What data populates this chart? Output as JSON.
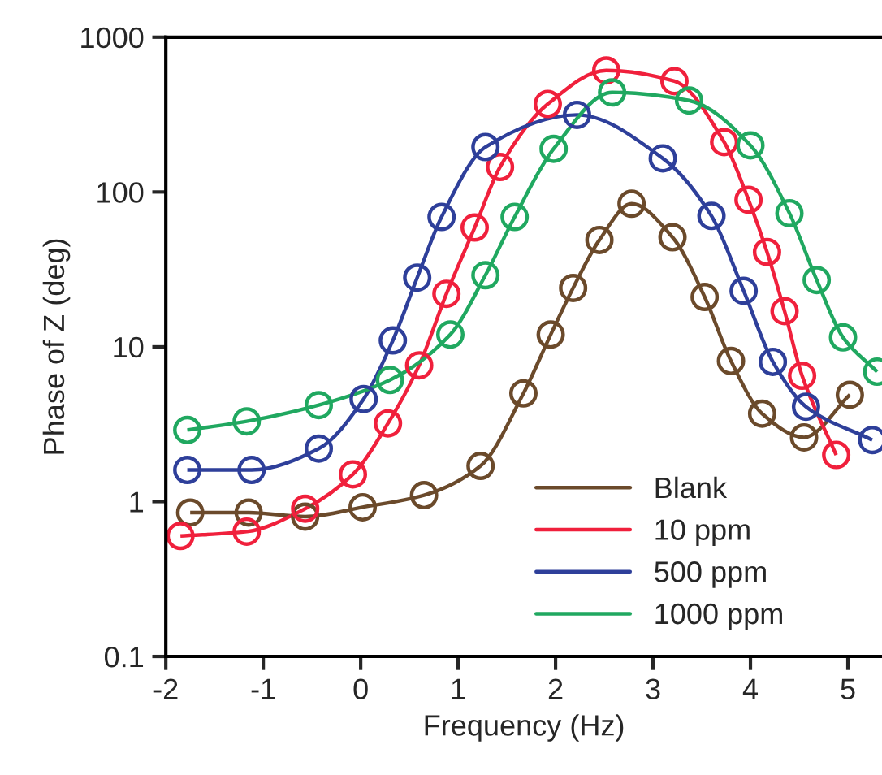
{
  "chart_data": {
    "type": "line",
    "xlabel": "Frequency (Hz)",
    "ylabel": "Phase of Z (deg)",
    "log": "y",
    "xlim": [
      -2,
      5.35
    ],
    "xticks": [
      -2,
      -1,
      0,
      1,
      2,
      3,
      4,
      5
    ],
    "ylim": [
      0.1,
      1000
    ],
    "yticks": [
      0.1,
      1,
      10,
      100,
      1000
    ],
    "grid": false,
    "legend": "bottom right",
    "marker": "circle",
    "line_style": "solid",
    "series": [
      {
        "name": "Blank",
        "color": "#6b4a2b",
        "x": [
          -1.75,
          -1.15,
          -0.57,
          0.02,
          0.65,
          1.23,
          1.67,
          1.95,
          2.18,
          2.45,
          2.78,
          3.2,
          3.53,
          3.8,
          4.12,
          4.55,
          5.02
        ],
        "values": [
          0.85,
          0.85,
          0.8,
          0.92,
          1.1,
          1.7,
          5,
          12,
          24,
          49,
          84,
          51,
          21,
          8.1,
          3.7,
          2.6,
          4.9
        ]
      },
      {
        "name": "10 ppm",
        "color": "#f0203c",
        "x": [
          -1.85,
          -1.17,
          -0.57,
          -0.08,
          0.28,
          0.6,
          0.88,
          1.17,
          1.43,
          1.92,
          2.52,
          3.22,
          3.73,
          3.98,
          4.17,
          4.35,
          4.53,
          4.88
        ],
        "values": [
          0.6,
          0.64,
          0.9,
          1.5,
          3.2,
          7.6,
          22,
          59,
          145,
          370,
          610,
          520,
          210,
          89,
          41,
          17,
          6.5,
          2
        ]
      },
      {
        "name": "500 ppm",
        "color": "#2e3f9a",
        "x": [
          -1.78,
          -1.12,
          -0.43,
          0.03,
          0.33,
          0.58,
          0.83,
          1.28,
          2.22,
          3.1,
          3.6,
          3.93,
          4.23,
          4.57,
          5.25
        ],
        "values": [
          1.6,
          1.6,
          2.2,
          4.6,
          11,
          28,
          69,
          195,
          315,
          165,
          70,
          23,
          8,
          4.1,
          2.5
        ]
      },
      {
        "name": "1000 ppm",
        "color": "#20a860",
        "x": [
          -1.78,
          -1.17,
          -0.43,
          0.3,
          0.92,
          1.28,
          1.58,
          1.98,
          2.58,
          3.37,
          4.0,
          4.4,
          4.68,
          4.95,
          5.3
        ],
        "values": [
          2.9,
          3.3,
          4.2,
          6.1,
          12,
          29,
          69,
          190,
          440,
          390,
          200,
          73,
          27,
          11.5,
          6.9
        ]
      }
    ]
  }
}
